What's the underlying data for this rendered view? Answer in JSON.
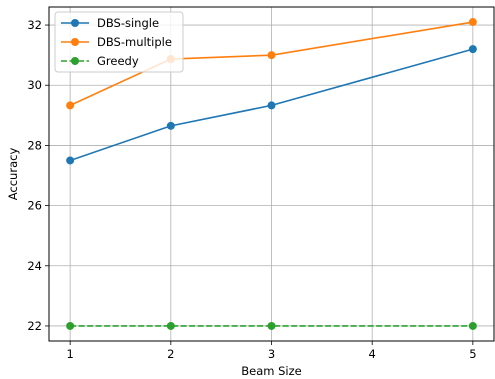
{
  "chart_data": {
    "type": "line",
    "xlabel": "Beam Size",
    "ylabel": "Accuracy",
    "x": [
      1,
      2,
      3,
      5
    ],
    "xlim": [
      0.79,
      5.21
    ],
    "ylim": [
      21.5,
      32.6
    ],
    "xticks": [
      1,
      2,
      3,
      4,
      5
    ],
    "yticks": [
      22,
      24,
      26,
      28,
      30,
      32
    ],
    "grid": true,
    "legend_position": "upper-left",
    "series": [
      {
        "name": "DBS-single",
        "color": "#1f77b4",
        "linestyle": "solid",
        "marker": "circle",
        "values": [
          27.5,
          28.65,
          29.33,
          31.2
        ]
      },
      {
        "name": "DBS-multiple",
        "color": "#ff7f0e",
        "linestyle": "solid",
        "marker": "circle",
        "values": [
          29.33,
          30.87,
          31.0,
          32.1
        ]
      },
      {
        "name": "Greedy",
        "color": "#2ca02c",
        "linestyle": "dashed",
        "marker": "circle",
        "values": [
          22.0,
          22.0,
          22.0,
          22.0
        ]
      }
    ]
  }
}
